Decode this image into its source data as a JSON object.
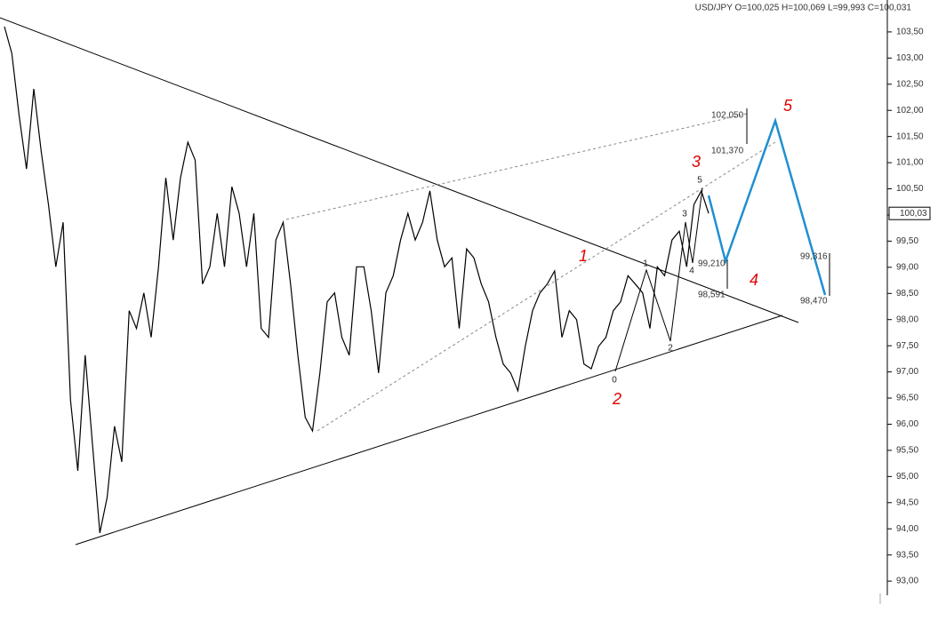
{
  "chart_data": {
    "type": "line",
    "title": "USD/JPY O=100,025 H=100,069 L=99,993 C=100,031",
    "series": [
      {
        "name": "USD/JPY",
        "color": "#000000",
        "values": [
          103.6,
          103.09,
          101.9,
          100.88,
          102.41,
          101.22,
          100.2,
          99.01,
          99.86,
          96.46,
          95.11,
          97.32,
          95.62,
          93.92,
          94.6,
          95.96,
          95.28,
          98.17,
          97.83,
          98.51,
          97.66,
          99.01,
          100.71,
          99.52,
          100.71,
          101.39,
          101.05,
          98.68,
          99.01,
          100.03,
          99.01,
          100.54,
          100.03,
          99.01,
          100.03,
          97.83,
          97.66,
          99.52,
          99.86,
          98.68,
          97.32,
          96.13,
          95.87,
          96.98,
          98.34,
          98.51,
          97.66,
          97.32,
          99.01,
          99.01,
          98.17,
          96.98,
          98.51,
          98.84,
          99.52,
          100.03,
          99.52,
          99.86,
          100.46,
          99.52,
          99.01,
          99.18,
          97.83,
          99.35,
          99.18,
          98.68,
          98.34,
          97.66,
          97.15,
          96.98,
          96.64,
          97.49,
          98.17,
          98.51,
          98.68,
          98.93,
          97.66,
          98.17,
          98.0,
          97.15,
          97.06,
          97.49,
          97.66,
          98.17,
          98.34,
          98.84,
          98.68,
          98.51,
          97.83,
          99.01,
          98.84,
          99.52,
          99.69,
          99.01,
          100.2,
          100.46,
          100.03
        ]
      }
    ],
    "ylim": [
      92.73,
      104.11
    ],
    "yticks": [
      {
        "value": 93.0,
        "label": "93,00"
      },
      {
        "value": 93.5,
        "label": "93,50"
      },
      {
        "value": 94.0,
        "label": "94,00"
      },
      {
        "value": 94.5,
        "label": "94,50"
      },
      {
        "value": 95.0,
        "label": "95,00"
      },
      {
        "value": 95.5,
        "label": "95,50"
      },
      {
        "value": 96.0,
        "label": "96,00"
      },
      {
        "value": 96.5,
        "label": "96,50"
      },
      {
        "value": 97.0,
        "label": "97,00"
      },
      {
        "value": 97.5,
        "label": "97,50"
      },
      {
        "value": 98.0,
        "label": "98,00"
      },
      {
        "value": 98.5,
        "label": "98,50"
      },
      {
        "value": 99.0,
        "label": "99,00"
      },
      {
        "value": 99.5,
        "label": "99,50"
      },
      {
        "value": 100.0,
        "label": "100,00"
      },
      {
        "value": 100.5,
        "label": "100,50"
      },
      {
        "value": 101.0,
        "label": "101,00"
      },
      {
        "value": 101.5,
        "label": "101,50"
      },
      {
        "value": 102.0,
        "label": "102,00"
      },
      {
        "value": 102.5,
        "label": "102,50"
      },
      {
        "value": 103.0,
        "label": "103,00"
      },
      {
        "value": 103.5,
        "label": "103,50"
      }
    ],
    "last_price_label": "100,03",
    "annotations": [
      "102,050",
      "101,370",
      "99,210",
      "98,591",
      "99,316",
      "98,470"
    ],
    "wave_labels": [
      "1",
      "2",
      "3",
      "4",
      "5"
    ],
    "sub_wave_labels": [
      "0",
      "1",
      "2",
      "3",
      "4",
      "5"
    ]
  }
}
